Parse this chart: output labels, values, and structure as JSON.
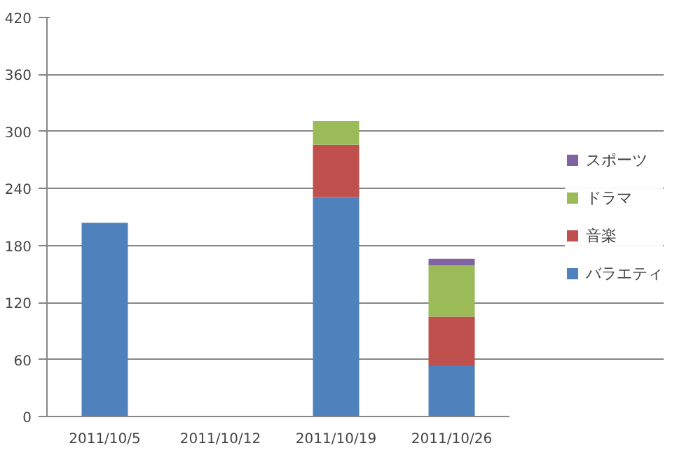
{
  "chart_data": {
    "type": "bar",
    "stacked": true,
    "categories": [
      "2011/10/5",
      "2011/10/12",
      "2011/10/19",
      "2011/10/26"
    ],
    "series": [
      {
        "name": "バラエティ",
        "color": "#4f81bd",
        "values": [
          204,
          null,
          231,
          53
        ]
      },
      {
        "name": "音楽",
        "color": "#c0504d",
        "values": [
          null,
          null,
          55,
          52
        ]
      },
      {
        "name": "ドラマ",
        "color": "#9bbb59",
        "values": [
          null,
          null,
          25,
          54
        ]
      },
      {
        "name": "スポーツ",
        "color": "#8064a2",
        "values": [
          null,
          null,
          null,
          7
        ]
      }
    ],
    "ylim": [
      0,
      420
    ],
    "yticks": [
      0,
      60,
      120,
      180,
      240,
      300,
      360,
      420
    ],
    "grid": "y",
    "legend": "right"
  }
}
